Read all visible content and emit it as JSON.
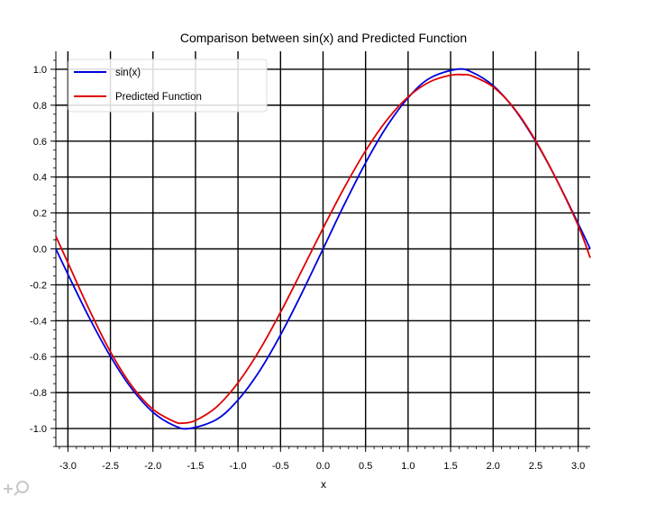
{
  "chart_data": {
    "type": "line",
    "title": "Comparison between sin(x) and Predicted Function",
    "xlabel": "x",
    "ylabel": "",
    "xlim": [
      -3.1416,
      3.1416
    ],
    "ylim": [
      -1.1,
      1.1
    ],
    "grid": true,
    "legend_position": "top-left",
    "x_ticks": [
      -3.0,
      -2.5,
      -2.0,
      -1.5,
      -1.0,
      -0.5,
      0.0,
      0.5,
      1.0,
      1.5,
      2.0,
      2.5,
      3.0
    ],
    "x_tick_labels": [
      "-3.0",
      "-2.5",
      "-2.0",
      "-1.5",
      "-1.0",
      "-0.5",
      "0.0",
      "0.5",
      "1.0",
      "1.5",
      "2.0",
      "2.5",
      "3.0"
    ],
    "y_ticks": [
      -1.0,
      -0.8,
      -0.6,
      -0.4,
      -0.2,
      0.0,
      0.2,
      0.4,
      0.6,
      0.8,
      1.0
    ],
    "y_tick_labels": [
      "-1.0",
      "-0.8",
      "-0.6",
      "-0.4",
      "-0.2",
      "0.0",
      "0.2",
      "0.4",
      "0.6",
      "0.8",
      "1.0"
    ],
    "series": [
      {
        "name": "sin(x)",
        "color": "#0000dd",
        "x": [
          -3.1416,
          -3.0,
          -2.75,
          -2.5,
          -2.25,
          -2.0,
          -1.75,
          -1.5708,
          -1.25,
          -1.0,
          -0.75,
          -0.5,
          -0.25,
          0.0,
          0.25,
          0.5,
          0.75,
          1.0,
          1.25,
          1.5708,
          1.75,
          2.0,
          2.25,
          2.5,
          2.75,
          3.0,
          3.1416
        ],
        "y": [
          0.0,
          -0.141,
          -0.382,
          -0.598,
          -0.778,
          -0.909,
          -0.984,
          -1.0,
          -0.949,
          -0.841,
          -0.682,
          -0.479,
          -0.247,
          0.0,
          0.247,
          0.479,
          0.682,
          0.841,
          0.949,
          1.0,
          0.984,
          0.909,
          0.778,
          0.598,
          0.382,
          0.141,
          0.0
        ]
      },
      {
        "name": "Predicted Function",
        "color": "#dd0000",
        "x": [
          -3.1416,
          -3.0,
          -2.75,
          -2.5,
          -2.25,
          -2.0,
          -1.75,
          -1.65,
          -1.5,
          -1.25,
          -1.0,
          -0.75,
          -0.5,
          -0.25,
          0.0,
          0.25,
          0.5,
          0.75,
          1.0,
          1.25,
          1.5,
          1.65,
          1.75,
          2.0,
          2.25,
          2.5,
          2.75,
          3.0,
          3.1416
        ],
        "y": [
          0.07,
          -0.077,
          -0.337,
          -0.573,
          -0.762,
          -0.893,
          -0.961,
          -0.97,
          -0.955,
          -0.879,
          -0.745,
          -0.566,
          -0.353,
          -0.121,
          0.115,
          0.341,
          0.546,
          0.717,
          0.846,
          0.929,
          0.967,
          0.97,
          0.963,
          0.902,
          0.781,
          0.602,
          0.381,
          0.13,
          -0.05
        ]
      }
    ]
  },
  "toolbar": {
    "zoom_icon": "zoom-pan-icon"
  }
}
